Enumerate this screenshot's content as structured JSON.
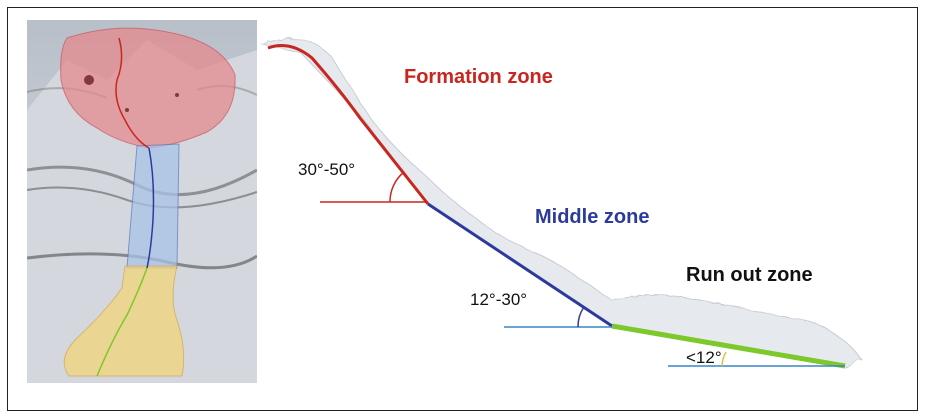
{
  "zones": {
    "formation": {
      "label": "Formation zone",
      "angle": "30°-50°",
      "color": "#c8261e"
    },
    "middle": {
      "label": "Middle zone",
      "angle": "12°-30°",
      "color": "#2b3a9c"
    },
    "runout": {
      "label": "Run out zone",
      "angle": "<12°",
      "color": "#7dc82a"
    }
  },
  "reference_line_color": "#3a86c6",
  "snow_color": "#e6e9ee",
  "photo_overlays": {
    "top_fill": "#e48a8e",
    "middle_fill": "#a9c3e6",
    "bottom_fill": "#f2d479"
  }
}
